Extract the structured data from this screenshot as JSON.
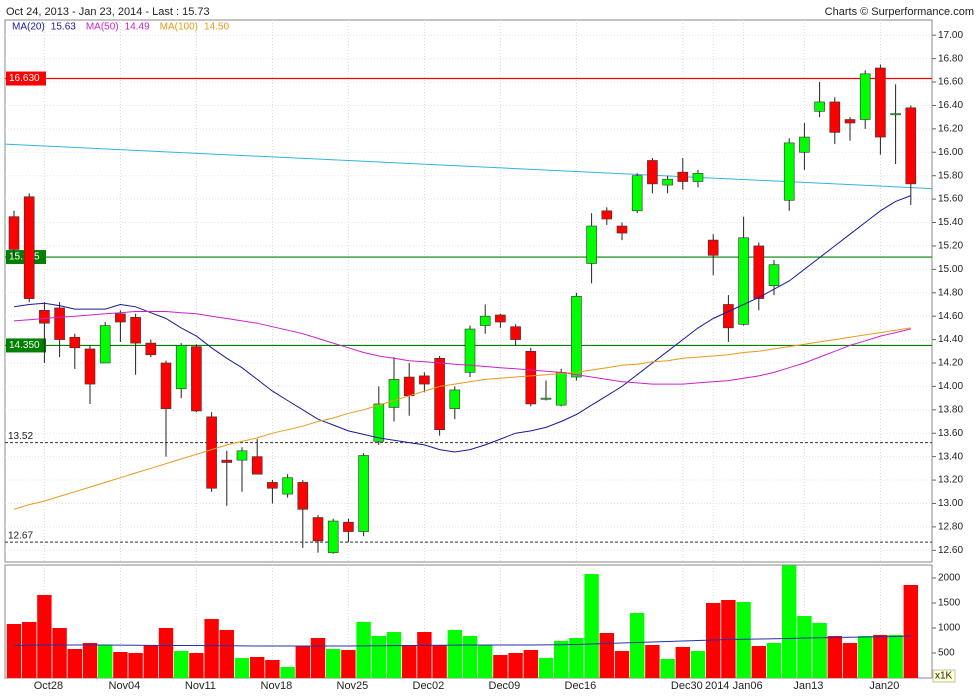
{
  "chart_data": [
    {
      "type": "candlestick",
      "title": "Oct 24, 2013 - Jan 23, 2014 - Last : 15.73",
      "source": "Charts © Surperformance.com",
      "categories": [
        null,
        null,
        "Oct28",
        null,
        null,
        null,
        null,
        "Nov04",
        null,
        null,
        null,
        null,
        "Nov11",
        null,
        null,
        null,
        null,
        "Nov18",
        null,
        null,
        null,
        null,
        "Nov25",
        null,
        null,
        null,
        null,
        "Dec02",
        null,
        null,
        null,
        null,
        "Dec09",
        null,
        null,
        null,
        null,
        "Dec16",
        null,
        null,
        null,
        null,
        null,
        null,
        "Dec30",
        null,
        "2014",
        null,
        "Jan06",
        null,
        null,
        null,
        "Jan13",
        null,
        null,
        null,
        null,
        "Jan20",
        null,
        null
      ],
      "open": [
        15.45,
        15.62,
        14.65,
        14.67,
        14.42,
        14.32,
        14.2,
        14.62,
        14.59,
        14.37,
        14.2,
        13.98,
        14.34,
        13.74,
        13.37,
        13.37,
        13.4,
        13.18,
        13.08,
        13.18,
        12.88,
        12.58,
        12.84,
        12.76,
        13.53,
        13.82,
        14.08,
        14.09,
        14.24,
        13.81,
        14.12,
        14.52,
        14.61,
        14.51,
        14.3,
        13.89,
        13.84,
        14.08,
        15.05,
        15.5,
        15.37,
        15.5,
        15.93,
        15.72,
        15.83,
        15.75,
        15.25,
        14.7,
        14.53,
        15.2,
        14.86,
        15.59,
        16.0,
        16.35,
        16.43,
        16.28,
        16.28,
        16.72,
        16.32,
        16.38
      ],
      "high": [
        15.5,
        15.65,
        14.72,
        14.72,
        14.45,
        14.35,
        14.55,
        14.65,
        14.62,
        14.4,
        14.22,
        14.37,
        14.36,
        13.78,
        13.45,
        13.48,
        13.55,
        13.2,
        13.25,
        13.2,
        12.9,
        12.87,
        12.87,
        13.43,
        14.0,
        14.25,
        14.2,
        14.12,
        14.26,
        14.0,
        14.52,
        14.7,
        14.62,
        14.53,
        14.33,
        14.05,
        14.15,
        14.8,
        15.48,
        15.53,
        15.4,
        15.82,
        15.95,
        15.8,
        15.95,
        15.85,
        15.3,
        14.78,
        15.45,
        15.23,
        15.08,
        16.12,
        16.25,
        16.6,
        16.47,
        16.3,
        16.7,
        16.75,
        16.58,
        16.4
      ],
      "low": [
        15.1,
        14.72,
        14.2,
        14.25,
        14.15,
        13.85,
        14.2,
        14.38,
        14.1,
        14.25,
        13.4,
        13.9,
        13.78,
        13.1,
        12.98,
        13.1,
        13.25,
        13.0,
        13.05,
        12.62,
        12.58,
        12.57,
        12.67,
        12.72,
        13.5,
        13.7,
        13.75,
        13.95,
        13.58,
        13.72,
        14.08,
        14.45,
        14.5,
        14.35,
        13.83,
        13.88,
        13.83,
        14.05,
        14.88,
        15.38,
        15.25,
        15.48,
        15.65,
        15.65,
        15.68,
        15.7,
        14.95,
        14.38,
        14.52,
        14.65,
        14.78,
        15.5,
        15.85,
        16.3,
        16.07,
        16.1,
        16.2,
        15.98,
        15.9,
        15.55
      ],
      "close": [
        15.17,
        14.75,
        14.54,
        14.4,
        14.33,
        14.02,
        14.52,
        14.55,
        14.37,
        14.27,
        13.81,
        14.35,
        13.79,
        13.13,
        13.35,
        13.45,
        13.25,
        13.13,
        13.22,
        12.95,
        12.68,
        12.85,
        12.76,
        13.41,
        13.85,
        14.06,
        13.92,
        14.02,
        13.63,
        13.97,
        14.49,
        14.6,
        14.55,
        14.4,
        13.85,
        13.9,
        14.12,
        14.77,
        15.37,
        15.43,
        15.31,
        15.8,
        15.73,
        15.77,
        15.75,
        15.82,
        15.12,
        14.5,
        15.27,
        14.75,
        15.04,
        16.08,
        16.13,
        16.43,
        16.17,
        16.25,
        16.67,
        16.13,
        16.33,
        15.73
      ],
      "up_color": "#00ff00",
      "down_color": "#ff0000",
      "ylim": [
        12.5,
        17.13
      ],
      "yticks": [
        {
          "value": 12.6,
          "label": "12.60"
        },
        {
          "value": 12.8,
          "label": "12.80"
        },
        {
          "value": 13,
          "label": "13.00"
        },
        {
          "value": 13.2,
          "label": "13.20"
        },
        {
          "value": 13.4,
          "label": "13.40"
        },
        {
          "value": 13.6,
          "label": "13.60"
        },
        {
          "value": 13.8,
          "label": "13.80"
        },
        {
          "value": 14,
          "label": "14.00"
        },
        {
          "value": 14.2,
          "label": "14.20"
        },
        {
          "value": 14.4,
          "label": "14.40"
        },
        {
          "value": 14.6,
          "label": "14.60"
        },
        {
          "value": 14.8,
          "label": "14.80"
        },
        {
          "value": 15,
          "label": "15.00"
        },
        {
          "value": 15.2,
          "label": "15.20"
        },
        {
          "value": 15.4,
          "label": "15.40"
        },
        {
          "value": 15.6,
          "label": "15.60"
        },
        {
          "value": 15.8,
          "label": "15.80"
        },
        {
          "value": 16,
          "label": "16.00"
        },
        {
          "value": 16.2,
          "label": "16.20"
        },
        {
          "value": 16.4,
          "label": "16.40"
        },
        {
          "value": 16.6,
          "label": "16.60"
        },
        {
          "value": 16.8,
          "label": "16.80"
        },
        {
          "value": 17,
          "label": "17.00"
        }
      ],
      "grid": true,
      "lines": [
        {
          "name": "MA(20)",
          "color": "#1a1a9a",
          "last": 15.63,
          "values": [
            14.68,
            14.7,
            14.71,
            14.69,
            14.66,
            14.66,
            14.66,
            14.7,
            14.68,
            14.63,
            14.58,
            14.5,
            14.43,
            14.33,
            14.24,
            14.16,
            14.06,
            13.96,
            13.88,
            13.8,
            13.72,
            13.67,
            13.62,
            13.59,
            13.56,
            13.54,
            13.52,
            13.5,
            13.46,
            13.44,
            13.46,
            13.5,
            13.55,
            13.6,
            13.62,
            13.65,
            13.7,
            13.76,
            13.84,
            13.92,
            14.0,
            14.1,
            14.2,
            14.3,
            14.4,
            14.5,
            14.58,
            14.64,
            14.7,
            14.76,
            14.83,
            14.9,
            15.0,
            15.1,
            15.2,
            15.3,
            15.4,
            15.5,
            15.58,
            15.63
          ]
        },
        {
          "name": "MA(50)",
          "color": "#cc22cc",
          "last": 14.49,
          "values": [
            14.56,
            14.57,
            14.58,
            14.59,
            14.6,
            14.61,
            14.62,
            14.63,
            14.64,
            14.64,
            14.64,
            14.63,
            14.62,
            14.6,
            14.58,
            14.56,
            14.54,
            14.51,
            14.48,
            14.45,
            14.41,
            14.37,
            14.33,
            14.29,
            14.26,
            14.24,
            14.22,
            14.21,
            14.2,
            14.19,
            14.18,
            14.17,
            14.16,
            14.15,
            14.14,
            14.13,
            14.12,
            14.1,
            14.08,
            14.06,
            14.04,
            14.03,
            14.02,
            14.02,
            14.02,
            14.03,
            14.04,
            14.05,
            14.07,
            14.09,
            14.12,
            14.16,
            14.2,
            14.25,
            14.3,
            14.35,
            14.39,
            14.43,
            14.46,
            14.49
          ]
        },
        {
          "name": "MA(100)",
          "color": "#e89a1a",
          "last": {
            "value": 14.5,
            "label": "14.50"
          },
          "values": [
            12.95,
            12.99,
            13.02,
            13.06,
            13.1,
            13.14,
            13.18,
            13.22,
            13.26,
            13.3,
            13.34,
            13.38,
            13.42,
            13.46,
            13.5,
            13.53,
            13.56,
            13.6,
            13.63,
            13.66,
            13.7,
            13.73,
            13.77,
            13.8,
            13.84,
            13.88,
            13.92,
            13.96,
            14.0,
            14.02,
            14.04,
            14.06,
            14.07,
            14.08,
            14.09,
            14.1,
            14.11,
            14.12,
            14.14,
            14.16,
            14.18,
            14.19,
            14.21,
            14.22,
            14.24,
            14.25,
            14.26,
            14.27,
            14.29,
            14.3,
            14.32,
            14.34,
            14.36,
            14.38,
            14.4,
            14.42,
            14.44,
            14.46,
            14.48,
            14.5
          ]
        }
      ],
      "levels": [
        {
          "value": 16.63,
          "label": "16.630",
          "color": "#ff0000",
          "style": "solid"
        },
        {
          "value": 15.105,
          "color": "#008000",
          "style": "solid"
        },
        {
          "value": 14.35,
          "label": "14.350",
          "color": "#008000",
          "style": "solid"
        },
        {
          "value": 13.52,
          "color": "#333333",
          "style": "dashed"
        },
        {
          "value": 12.67,
          "color": "#333333",
          "style": "dashed"
        }
      ],
      "trendline": {
        "values": [
          16.07,
          15.69
        ],
        "color": "#33b5dd"
      }
    },
    {
      "type": "bar",
      "unit_label": "x1K",
      "values": [
        1080,
        1120,
        1660,
        1000,
        580,
        700,
        660,
        520,
        500,
        660,
        1000,
        540,
        500,
        1180,
        960,
        400,
        420,
        360,
        220,
        640,
        800,
        580,
        560,
        1120,
        840,
        920,
        660,
        920,
        660,
        960,
        840,
        660,
        460,
        500,
        560,
        400,
        740,
        800,
        2080,
        900,
        540,
        1300,
        660,
        380,
        620,
        540,
        1500,
        1560,
        1520,
        640,
        700,
        2250,
        1240,
        1100,
        840,
        700,
        840,
        860,
        860,
        1860
      ],
      "ylim": [
        0,
        2260
      ],
      "yticks": [
        500,
        1000,
        1500,
        2000
      ],
      "average": {
        "color": "#2233aa",
        "values": [
          650,
          655,
          660,
          660,
          660,
          660,
          660,
          658,
          655,
          652,
          650,
          650,
          650,
          648,
          645,
          642,
          640,
          640,
          640,
          640,
          640,
          640,
          640,
          642,
          645,
          648,
          650,
          652,
          655,
          658,
          660,
          660,
          660,
          660,
          660,
          662,
          665,
          670,
          680,
          690,
          700,
          710,
          720,
          730,
          740,
          750,
          760,
          770,
          775,
          780,
          785,
          790,
          800,
          805,
          810,
          815,
          820,
          825,
          830,
          840
        ]
      }
    }
  ]
}
